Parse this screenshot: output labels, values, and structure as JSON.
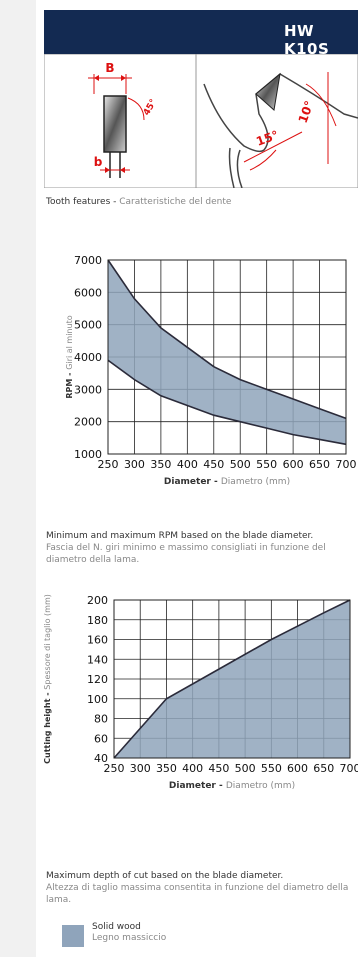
{
  "header": {
    "title": "HW K10S"
  },
  "tooth": {
    "label_B": "B",
    "label_b": "b",
    "angle_45": "45°",
    "angle_15": "15°",
    "angle_10": "10°",
    "caption_en": "Tooth features - ",
    "caption_it": "Caratteristiche del dente"
  },
  "rpm_chart": {
    "caption_en": "Minimum and maximum RPM based on the blade diameter.",
    "caption_it": "Fascia del N. giri minimo e massimo consigliati in funzione del diametro della lama."
  },
  "cut_chart": {
    "caption_en": "Maximum depth of cut based on the blade diameter.",
    "caption_it": "Altezza di taglio massima consentita in funzione del diametro della lama."
  },
  "legend": {
    "label_en": "Solid wood",
    "label_it": "Legno massiccio",
    "color": "#8fa4bb"
  },
  "chart_data": [
    {
      "type": "area",
      "title": "",
      "xlabel": "Diameter - ",
      "xlabel_it": "Diametro (mm)",
      "ylabel": "RPM - ",
      "ylabel_it": "Giri al minuto",
      "x": [
        250,
        300,
        350,
        400,
        450,
        500,
        550,
        600,
        650,
        700
      ],
      "xlim": [
        250,
        700
      ],
      "ylim": [
        1000,
        7000
      ],
      "yticks": [
        1000,
        2000,
        3000,
        4000,
        5000,
        6000,
        7000
      ],
      "grid": true,
      "series": [
        {
          "values": [
            7000,
            5800,
            4900,
            4300,
            3700,
            3300,
            3000,
            2700,
            2400,
            2100
          ]
        },
        {
          "values": [
            3900,
            3300,
            2800,
            2500,
            2200,
            2000,
            1800,
            1600,
            1450,
            1300
          ]
        }
      ],
      "fill_color": "#8fa4bb"
    },
    {
      "type": "area",
      "title": "",
      "xlabel": "Diameter - ",
      "xlabel_it": "Diametro (mm)",
      "ylabel": "Cutting height - ",
      "ylabel_it": "Spessore di taglio (mm)",
      "x": [
        250,
        350,
        450,
        550,
        650,
        700
      ],
      "xticks": [
        250,
        300,
        350,
        400,
        450,
        500,
        550,
        600,
        650,
        700
      ],
      "xlim": [
        250,
        700
      ],
      "ylim": [
        40,
        200
      ],
      "yticks": [
        40,
        60,
        80,
        100,
        120,
        140,
        160,
        180,
        200
      ],
      "grid": true,
      "series": [
        {
          "values": [
            40,
            100,
            130,
            160,
            187,
            200
          ]
        }
      ],
      "fill_color": "#8fa4bb"
    }
  ]
}
